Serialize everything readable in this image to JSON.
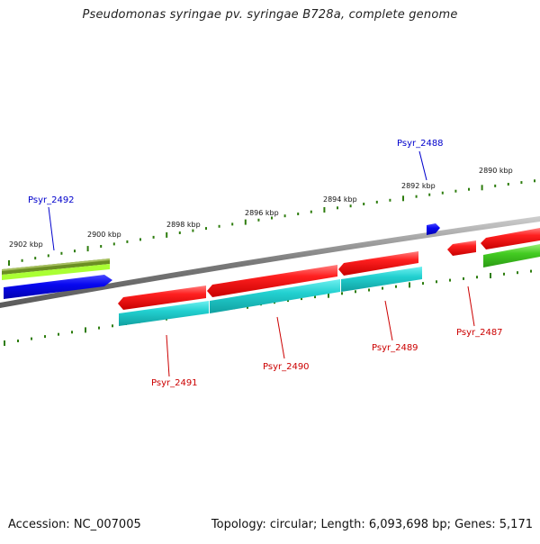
{
  "title": "Pseudomonas syringae pv. syringae B728a, complete genome",
  "footer": {
    "accession": "Accession: NC_007005",
    "summary": "Topology: circular; Length: 6,093,698 bp; Genes: 5,171"
  },
  "scale_labels": [
    "2902 kbp",
    "2900 kbp",
    "2898 kbp",
    "2896 kbp",
    "2894 kbp",
    "2892 kbp",
    "2890 kbp"
  ],
  "gene_labels": {
    "Psyr_2492": "Psyr_2492",
    "Psyr_2488": "Psyr_2488",
    "Psyr_2491": "Psyr_2491",
    "Psyr_2490": "Psyr_2490",
    "Psyr_2489": "Psyr_2489",
    "Psyr_2487": "Psyr_2487"
  },
  "colors": {
    "forward_label": "#0000cc",
    "reverse_label": "#cc0000",
    "backbone": "#888888",
    "tick": "#2e7d0e",
    "red_feature": "#ff1a1a",
    "cyan_feature": "#1ec8c8",
    "blue_feature": "#0a0aff",
    "green_feature": "#44cc22",
    "olive_feature": "#6b8e23",
    "lime_feature": "#aaff33"
  }
}
